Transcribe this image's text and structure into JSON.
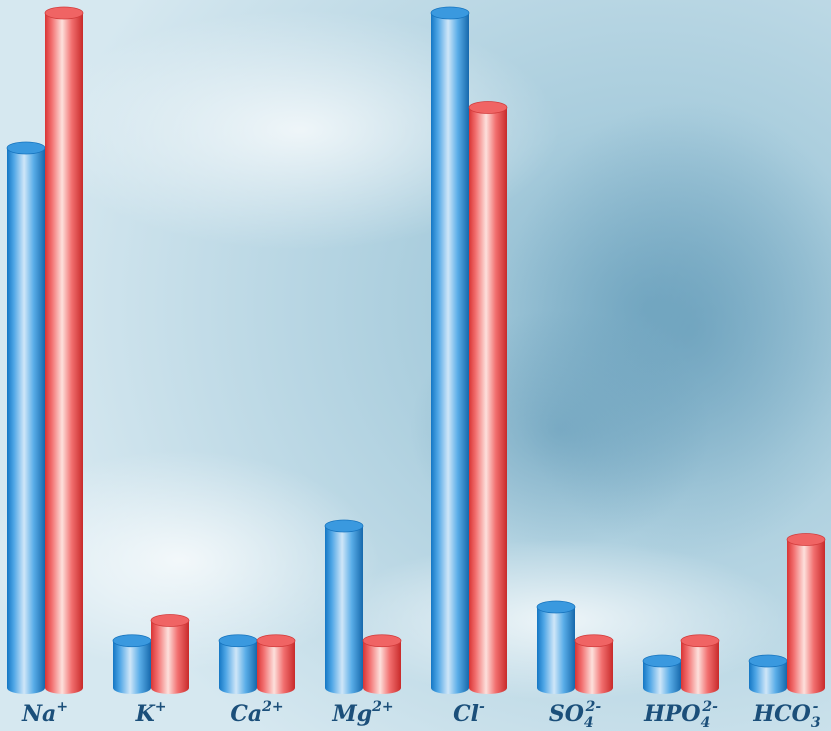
{
  "chart_data": {
    "type": "bar",
    "style": "3d-cylinder",
    "title": "",
    "xlabel": "",
    "ylabel": "",
    "ylim": [
      0,
      100
    ],
    "grid": false,
    "legend": "none",
    "categories": [
      {
        "base": "Na",
        "sup": "+",
        "sub": ""
      },
      {
        "base": "K",
        "sup": "+",
        "sub": ""
      },
      {
        "base": "Ca",
        "sup": "2+",
        "sub": ""
      },
      {
        "base": "Mg",
        "sup": "2+",
        "sub": ""
      },
      {
        "base": "Cl",
        "sup": "-",
        "sub": ""
      },
      {
        "base": "SO",
        "sup": "2-",
        "sub": "4"
      },
      {
        "base": "HPO",
        "sup": "2-",
        "sub": "4"
      },
      {
        "base": "HCO",
        "sup": "-",
        "sub": "3"
      }
    ],
    "series": [
      {
        "color": "#1a8ad8",
        "values": [
          80,
          7,
          7,
          24,
          100,
          12,
          4,
          4
        ]
      },
      {
        "color": "#ea4747",
        "values": [
          100,
          10,
          7,
          7,
          86,
          7,
          7,
          22
        ]
      }
    ],
    "background": "#bcd9e6"
  }
}
